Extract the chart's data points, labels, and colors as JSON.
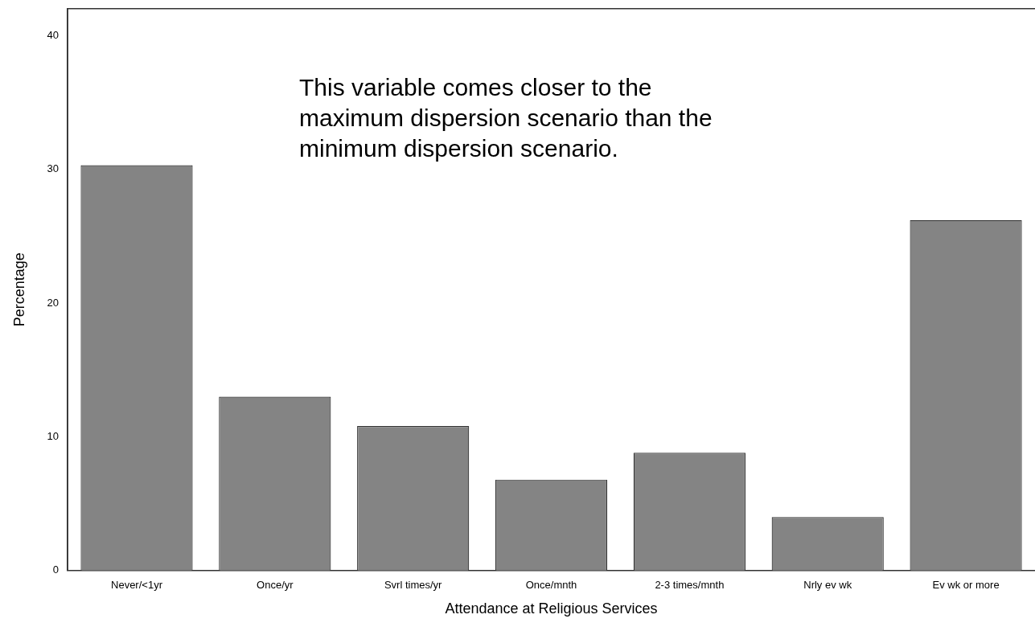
{
  "chart_data": {
    "type": "bar",
    "xlabel": "Attendance at Religious Services",
    "ylabel": "Percentage",
    "categories": [
      "Never/<1yr",
      "Once/yr",
      "Svrl times/yr",
      "Once/mnth",
      "2-3 times/mnth",
      "Nrly ev wk",
      "Ev wk or more"
    ],
    "values": [
      30.3,
      13.0,
      10.8,
      6.8,
      8.8,
      4.0,
      26.2
    ],
    "color": "#848484",
    "ylim": [
      0,
      42
    ],
    "yticks": [
      0,
      10,
      20,
      30,
      40
    ],
    "grid": false,
    "legend": false,
    "annotations": [
      "This variable comes closer to the maximum dispersion scenario than the minimum dispersion scenario."
    ]
  }
}
